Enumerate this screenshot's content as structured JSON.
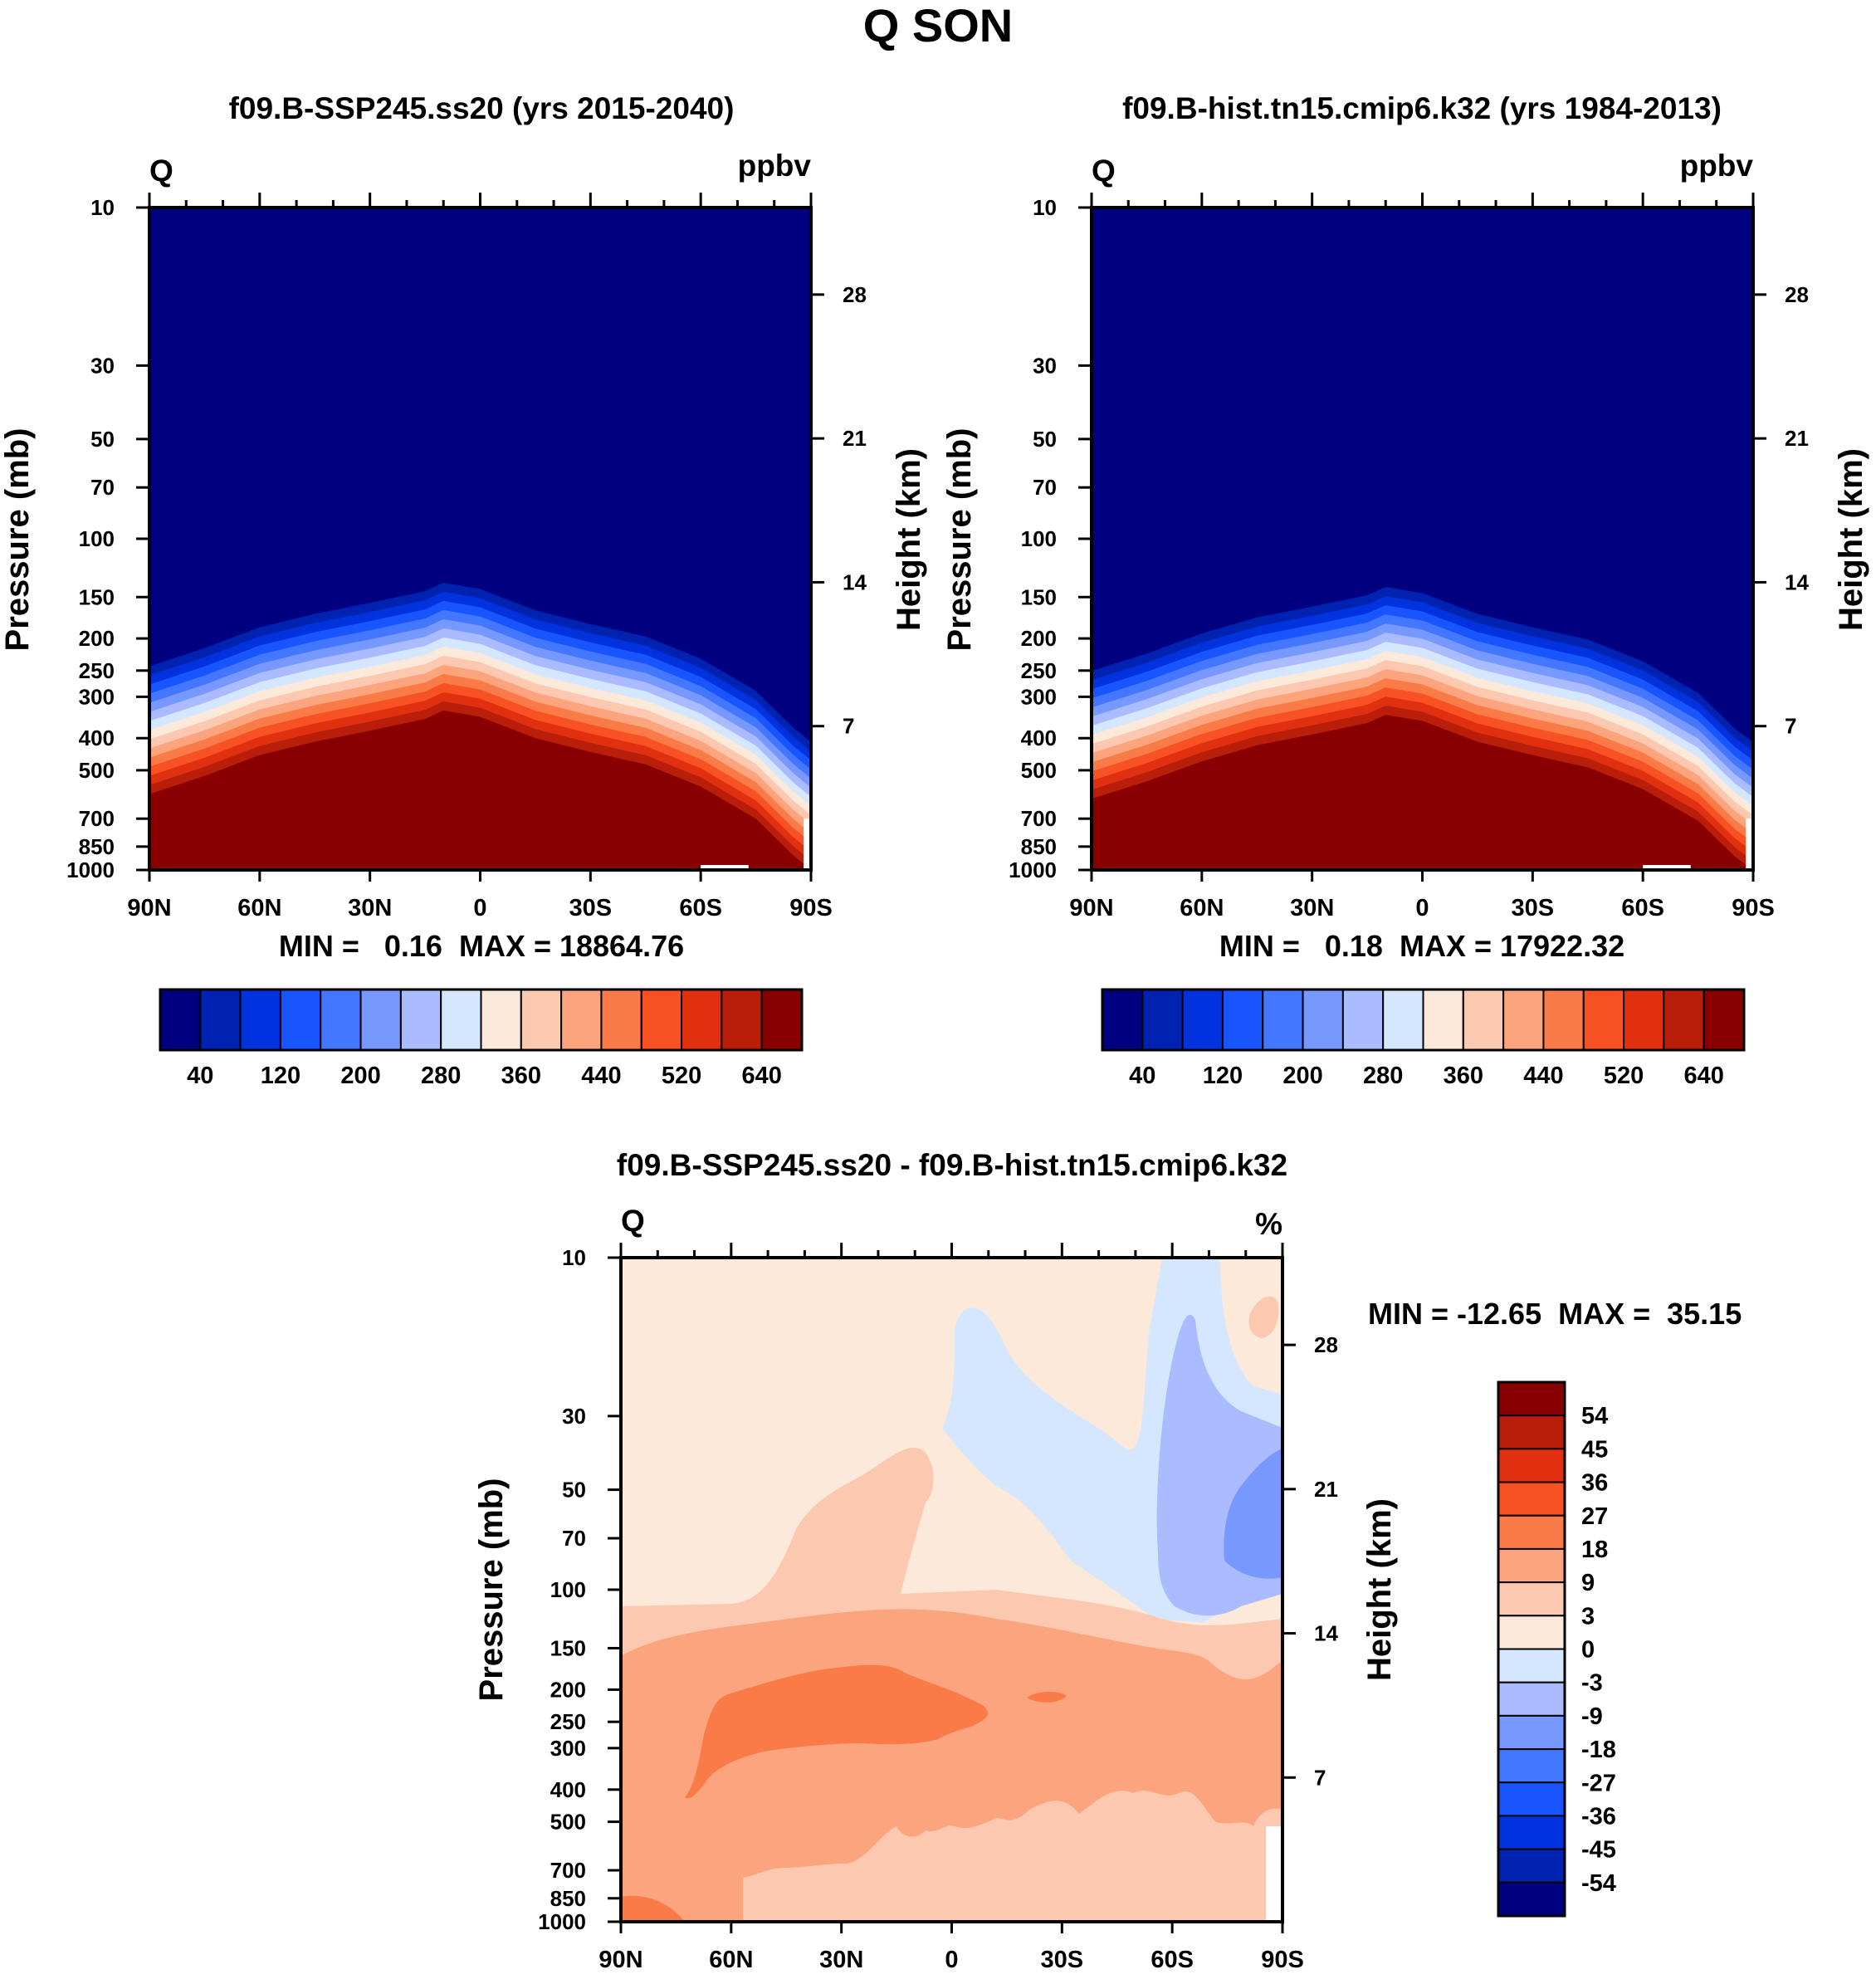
{
  "figure_title": "Q SON",
  "colors": {
    "ppbv_palette": [
      "#000080",
      "#0022b0",
      "#0033dd",
      "#1955ff",
      "#4477ff",
      "#7799ff",
      "#aabbff",
      "#d5e6ff",
      "#fde9d9",
      "#fcc8b0",
      "#fba47e",
      "#fa7a48",
      "#f85124",
      "#e03010",
      "#b81e0a",
      "#880000"
    ],
    "diff_palette_top_to_bottom": [
      "#880000",
      "#b81e0a",
      "#e03010",
      "#f85124",
      "#fa7a48",
      "#fba47e",
      "#fcc8b0",
      "#fde9d9",
      "#d5e6ff",
      "#aabbff",
      "#7799ff",
      "#4477ff",
      "#1955ff",
      "#0033dd",
      "#0022b0",
      "#000080"
    ]
  },
  "chart_data": [
    {
      "id": "panel1",
      "type": "contour",
      "title": "f09.B-SSP245.ss20 (yrs 2015-2040)",
      "left_label": "Q",
      "right_label": "ppbv",
      "ylabel": "Pressure (mb)",
      "y2label": "Height (km)",
      "x_ticks": [
        "90N",
        "60N",
        "30N",
        "0",
        "30S",
        "60S",
        "90S"
      ],
      "x_range": [
        90,
        -90
      ],
      "y_ticks": [
        10,
        30,
        50,
        70,
        100,
        150,
        200,
        250,
        300,
        400,
        500,
        700,
        850,
        1000
      ],
      "y_range": [
        10,
        1000
      ],
      "y_scale": "log",
      "height_ticks": [
        7,
        14,
        21,
        28
      ],
      "stats": {
        "min": "0.16",
        "max": "18864.76"
      },
      "stats_text": "MIN =   0.16  MAX = 18864.76",
      "colorbar_labels": [
        "40",
        "120",
        "200",
        "280",
        "360",
        "440",
        "520",
        "640"
      ],
      "tropopause_profile": {
        "lat": [
          90,
          75,
          60,
          45,
          30,
          15,
          10,
          0,
          -15,
          -30,
          -45,
          -60,
          -75,
          -85,
          -90
        ],
        "pressure_mb": [
          590,
          520,
          450,
          410,
          380,
          350,
          330,
          345,
          400,
          440,
          480,
          560,
          700,
          900,
          1000
        ]
      }
    },
    {
      "id": "panel2",
      "type": "contour",
      "title": "f09.B-hist.tn15.cmip6.k32 (yrs 1984-2013)",
      "left_label": "Q",
      "right_label": "ppbv",
      "ylabel": "Pressure (mb)",
      "y2label": "Height (km)",
      "x_ticks": [
        "90N",
        "60N",
        "30N",
        "0",
        "30S",
        "60S",
        "90S"
      ],
      "x_range": [
        90,
        -90
      ],
      "y_ticks": [
        10,
        30,
        50,
        70,
        100,
        150,
        200,
        250,
        300,
        400,
        500,
        700,
        850,
        1000
      ],
      "y_range": [
        10,
        1000
      ],
      "y_scale": "log",
      "height_ticks": [
        7,
        14,
        21,
        28
      ],
      "stats": {
        "min": "0.18",
        "max": "17922.32"
      },
      "stats_text": "MIN =   0.18  MAX = 17922.32",
      "colorbar_labels": [
        "40",
        "120",
        "200",
        "280",
        "360",
        "440",
        "520",
        "640"
      ],
      "tropopause_profile": {
        "lat": [
          90,
          75,
          60,
          45,
          30,
          15,
          10,
          0,
          -15,
          -30,
          -45,
          -60,
          -75,
          -85,
          -90
        ],
        "pressure_mb": [
          610,
          540,
          470,
          420,
          390,
          360,
          340,
          355,
          410,
          450,
          490,
          570,
          710,
          910,
          1000
        ]
      }
    },
    {
      "id": "panel3",
      "type": "contour",
      "title": "f09.B-SSP245.ss20 - f09.B-hist.tn15.cmip6.k32",
      "left_label": "Q",
      "right_label": "%",
      "ylabel": "Pressure (mb)",
      "y2label": "Height (km)",
      "x_ticks": [
        "90N",
        "60N",
        "30N",
        "0",
        "30S",
        "60S",
        "90S"
      ],
      "x_range": [
        90,
        -90
      ],
      "y_ticks": [
        10,
        30,
        50,
        70,
        100,
        150,
        200,
        250,
        300,
        400,
        500,
        700,
        850,
        1000
      ],
      "y_range": [
        10,
        1000
      ],
      "y_scale": "log",
      "height_ticks": [
        7,
        14,
        21,
        28
      ],
      "stats": {
        "min": "-12.65",
        "max": "35.15"
      },
      "stats_text": "MIN = -12.65  MAX =  35.15",
      "colorbar_labels": [
        "54",
        "45",
        "36",
        "27",
        "18",
        "9",
        "3",
        "0",
        "-3",
        "-9",
        "-18",
        "-27",
        "-36",
        "-45",
        "-54"
      ]
    }
  ]
}
